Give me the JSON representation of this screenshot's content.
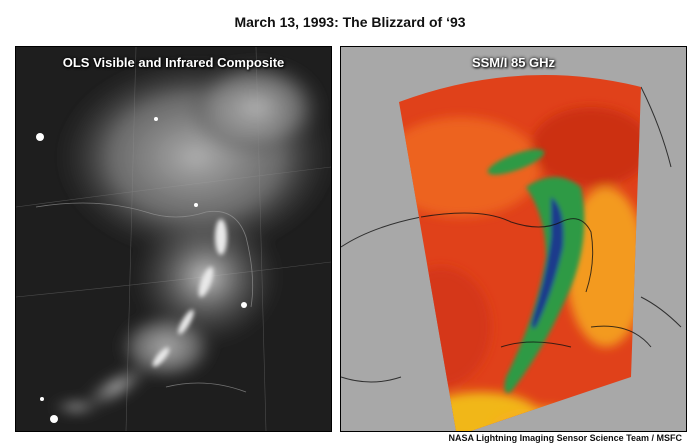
{
  "title": "March 13, 1993: The Blizzard of ‘93",
  "panels": [
    {
      "label": "OLS Visible and Infrared Composite"
    },
    {
      "label": "SSM/I 85 GHz"
    }
  ],
  "credit": "NASA Lightning Imaging Sensor Science Team / MSFC",
  "colors": {
    "ssmi_ocean": "#a8a8a8",
    "ssmi_warm": "#e0411a",
    "ssmi_precip": "#2f9a45",
    "ssmi_intense": "#1c3a8c",
    "ols_background": "#1c1c1c"
  }
}
